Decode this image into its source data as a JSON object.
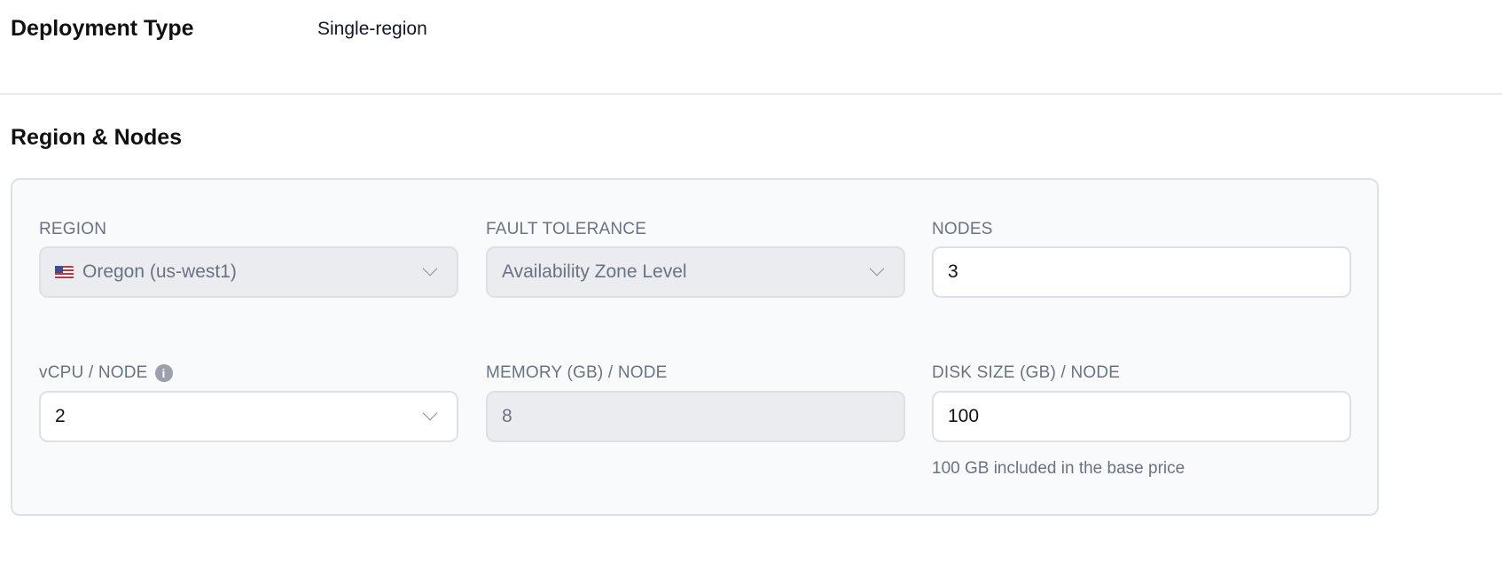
{
  "deployment": {
    "label": "Deployment Type",
    "value": "Single-region"
  },
  "section_title": "Region & Nodes",
  "fields": {
    "region": {
      "label": "REGION",
      "value": "Oregon (us-west1)",
      "flag": "us-flag-icon"
    },
    "fault_tolerance": {
      "label": "FAULT TOLERANCE",
      "value": "Availability Zone Level"
    },
    "nodes": {
      "label": "NODES",
      "value": "3"
    },
    "vcpu": {
      "label": "vCPU / NODE",
      "value": "2",
      "info": "i"
    },
    "memory": {
      "label": "MEMORY (GB) / NODE",
      "value": "8"
    },
    "disk": {
      "label": "DISK SIZE (GB) / NODE",
      "value": "100",
      "help": "100 GB included in the base price"
    }
  }
}
